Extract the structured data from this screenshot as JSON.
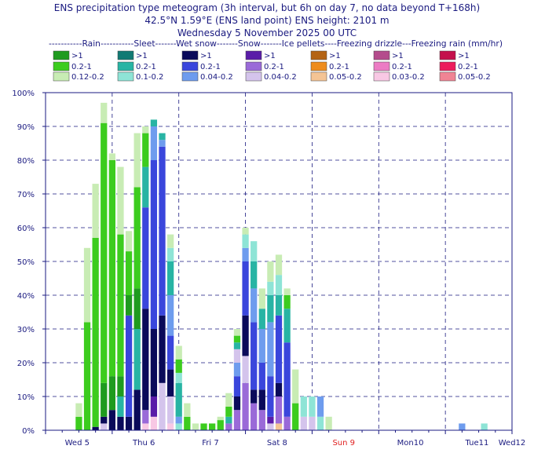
{
  "title_lines": [
    "ENS precipitation type meteogram (3h interval, but 6h on day 7, no data beyond T+168h)",
    "42.5°N 1.59°E (ENS land point) ENS height: 2101 m",
    "Wednesday  5 November 2025 00 UTC"
  ],
  "legend": {
    "header": "-----------Rain-----------Sleet-------Wet snow-------Snow-------Ice pellets----Freezing drizzle---Freezing rain (mm/hr)",
    "groups": [
      {
        "name": "Rain",
        "labels": [
          ">1",
          "0.2-1",
          "0.12-0.2"
        ],
        "colors": [
          "#1f9b1f",
          "#3ccc1e",
          "#c8ecb4"
        ]
      },
      {
        "name": "Sleet",
        "labels": [
          ">1",
          "0.2-1",
          "0.1-0.2"
        ],
        "colors": [
          "#127a74",
          "#28b4a4",
          "#8ee4d6"
        ]
      },
      {
        "name": "Wet snow",
        "labels": [
          ">1",
          "0.2-1",
          "0.04-0.2"
        ],
        "colors": [
          "#0a0a5a",
          "#3a46dc",
          "#6e9cee"
        ]
      },
      {
        "name": "Snow",
        "labels": [
          ">1",
          "0.2-1",
          "0.04-0.2"
        ],
        "colors": [
          "#5a1ca8",
          "#9a6ad8",
          "#d4c4ec"
        ]
      },
      {
        "name": "Ice pellets",
        "labels": [
          ">1",
          "0.2-1",
          "0.05-0.2"
        ],
        "colors": [
          "#b46414",
          "#ee8c1c",
          "#f4c494"
        ]
      },
      {
        "name": "Freezing drizzle",
        "labels": [
          ">1",
          "0.2-1",
          "0.03-0.2"
        ],
        "colors": [
          "#b44c8c",
          "#ec7cc4",
          "#f8c8e4"
        ]
      },
      {
        "name": "Freezing rain",
        "labels": [
          ">1",
          "0.2-1",
          "0.05-0.2"
        ],
        "colors": [
          "#c4104c",
          "#ec1c5c",
          "#f08494"
        ]
      }
    ]
  },
  "chart_data": {
    "type": "bar",
    "stacked": true,
    "ylim": [
      0,
      100
    ],
    "yticks": [
      "0%",
      "10%",
      "20%",
      "30%",
      "40%",
      "50%",
      "60%",
      "70%",
      "80%",
      "90%",
      "100%"
    ],
    "xlim_hours": [
      0,
      168
    ],
    "xticks": [
      {
        "label": "Wed 5",
        "hour": 0,
        "color": "#1a1a80"
      },
      {
        "label": "Thu 6",
        "hour": 24,
        "color": "#1a1a80"
      },
      {
        "label": "Fri 7",
        "hour": 48,
        "color": "#1a1a80"
      },
      {
        "label": "Sat 8",
        "hour": 72,
        "color": "#1a1a80"
      },
      {
        "label": "Sun 9",
        "hour": 96,
        "color": "#e02020"
      },
      {
        "label": "Mon10",
        "hour": 120,
        "color": "#1a1a80"
      },
      {
        "label": "Tue11",
        "hour": 144,
        "color": "#1a1a80"
      },
      {
        "label": "Wed12",
        "hour": 168,
        "color": "#1a1a80"
      }
    ],
    "grid": true,
    "bars": [
      {
        "hour": 12,
        "segments": [
          [
            "rain",
            2,
            4
          ],
          [
            "rain",
            3,
            4
          ]
        ]
      },
      {
        "hour": 15,
        "segments": [
          [
            "rain",
            2,
            32
          ],
          [
            "rain",
            3,
            22
          ]
        ]
      },
      {
        "hour": 18,
        "segments": [
          [
            "wet",
            1,
            1
          ],
          [
            "rain",
            2,
            56
          ],
          [
            "rain",
            3,
            16
          ]
        ]
      },
      {
        "hour": 21,
        "segments": [
          [
            "snow",
            3,
            2
          ],
          [
            "wet",
            1,
            2
          ],
          [
            "rain",
            1,
            10
          ],
          [
            "rain",
            2,
            77
          ],
          [
            "rain",
            3,
            6
          ]
        ]
      },
      {
        "hour": 24,
        "segments": [
          [
            "wet",
            1,
            6
          ],
          [
            "rain",
            1,
            10
          ],
          [
            "rain",
            2,
            64
          ],
          [
            "rain",
            3,
            2
          ]
        ]
      },
      {
        "hour": 27,
        "segments": [
          [
            "wet",
            1,
            4
          ],
          [
            "sleet",
            2,
            6
          ],
          [
            "rain",
            1,
            6
          ],
          [
            "rain",
            2,
            42
          ],
          [
            "rain",
            3,
            20
          ]
        ]
      },
      {
        "hour": 30,
        "segments": [
          [
            "wet",
            1,
            4
          ],
          [
            "wet",
            2,
            30
          ],
          [
            "rain",
            1,
            6
          ],
          [
            "rain",
            2,
            13
          ],
          [
            "rain",
            3,
            6
          ]
        ]
      },
      {
        "hour": 33,
        "segments": [
          [
            "wet",
            1,
            12
          ],
          [
            "sleet",
            2,
            18
          ],
          [
            "rain",
            1,
            12
          ],
          [
            "rain",
            2,
            30
          ],
          [
            "rain",
            3,
            16
          ]
        ]
      },
      {
        "hour": 36,
        "segments": [
          [
            "fdrz",
            3,
            2
          ],
          [
            "snow",
            2,
            4
          ],
          [
            "wet",
            1,
            30
          ],
          [
            "wet",
            2,
            30
          ],
          [
            "sleet",
            2,
            12
          ],
          [
            "rain",
            2,
            10
          ],
          [
            "rain",
            3,
            2
          ]
        ]
      },
      {
        "hour": 39,
        "segments": [
          [
            "fdrz",
            3,
            4
          ],
          [
            "snow",
            1,
            6
          ],
          [
            "wet",
            1,
            20
          ],
          [
            "wet",
            2,
            50
          ],
          [
            "wet",
            3,
            10
          ],
          [
            "sleet",
            2,
            2
          ]
        ]
      },
      {
        "hour": 42,
        "segments": [
          [
            "snow",
            3,
            14
          ],
          [
            "wet",
            1,
            20
          ],
          [
            "wet",
            2,
            50
          ],
          [
            "wet",
            3,
            2
          ],
          [
            "sleet",
            2,
            2
          ]
        ]
      },
      {
        "hour": 45,
        "segments": [
          [
            "fdrz",
            3,
            2
          ],
          [
            "snow",
            3,
            8
          ],
          [
            "wet",
            1,
            8
          ],
          [
            "wet",
            2,
            10
          ],
          [
            "wet",
            3,
            12
          ],
          [
            "sleet",
            2,
            10
          ],
          [
            "sleet",
            3,
            4
          ],
          [
            "rain",
            3,
            4
          ]
        ]
      },
      {
        "hour": 48,
        "segments": [
          [
            "sleet",
            3,
            2
          ],
          [
            "wet",
            3,
            2
          ],
          [
            "sleet",
            2,
            10
          ],
          [
            "sleet",
            3,
            3
          ],
          [
            "rain",
            2,
            4
          ],
          [
            "rain",
            3,
            4
          ]
        ]
      },
      {
        "hour": 51,
        "segments": [
          [
            "rain",
            2,
            4
          ],
          [
            "rain",
            3,
            4
          ]
        ]
      },
      {
        "hour": 54,
        "segments": [
          [
            "rain",
            3,
            2
          ]
        ]
      },
      {
        "hour": 57,
        "segments": [
          [
            "rain",
            2,
            2
          ]
        ]
      },
      {
        "hour": 60,
        "segments": [
          [
            "rain",
            2,
            2
          ]
        ]
      },
      {
        "hour": 63,
        "segments": [
          [
            "rain",
            2,
            3
          ],
          [
            "rain",
            3,
            1
          ]
        ]
      },
      {
        "hour": 66,
        "segments": [
          [
            "snow",
            2,
            2
          ],
          [
            "sleet",
            2,
            2
          ],
          [
            "rain",
            2,
            3
          ],
          [
            "rain",
            3,
            4
          ]
        ]
      },
      {
        "hour": 69,
        "segments": [
          [
            "snow",
            2,
            6
          ],
          [
            "wet",
            1,
            4
          ],
          [
            "wet",
            2,
            6
          ],
          [
            "wet",
            3,
            4
          ],
          [
            "snow",
            3,
            4
          ],
          [
            "sleet",
            2,
            2
          ],
          [
            "rain",
            2,
            2
          ],
          [
            "rain",
            3,
            2
          ]
        ]
      },
      {
        "hour": 72,
        "segments": [
          [
            "snow",
            2,
            14
          ],
          [
            "snow",
            3,
            8
          ],
          [
            "wet",
            1,
            12
          ],
          [
            "wet",
            2,
            16
          ],
          [
            "wet",
            3,
            4
          ],
          [
            "sleet",
            3,
            4
          ],
          [
            "rain",
            3,
            2
          ]
        ]
      },
      {
        "hour": 75,
        "segments": [
          [
            "snow",
            2,
            8
          ],
          [
            "wet",
            1,
            4
          ],
          [
            "wet",
            2,
            20
          ],
          [
            "wet",
            3,
            10
          ],
          [
            "sleet",
            2,
            8
          ],
          [
            "sleet",
            3,
            6
          ]
        ]
      },
      {
        "hour": 78,
        "segments": [
          [
            "snow",
            2,
            6
          ],
          [
            "wet",
            1,
            6
          ],
          [
            "wet",
            2,
            8
          ],
          [
            "wet",
            3,
            10
          ],
          [
            "sleet",
            2,
            6
          ],
          [
            "rain",
            3,
            6
          ]
        ]
      },
      {
        "hour": 81,
        "segments": [
          [
            "snow",
            3,
            2
          ],
          [
            "snow",
            1,
            2
          ],
          [
            "wet",
            2,
            12
          ],
          [
            "wet",
            3,
            16
          ],
          [
            "sleet",
            2,
            8
          ],
          [
            "sleet",
            3,
            4
          ],
          [
            "rain",
            3,
            6
          ]
        ]
      },
      {
        "hour": 84,
        "segments": [
          [
            "pellet",
            3,
            2
          ],
          [
            "snow",
            2,
            8
          ],
          [
            "wet",
            1,
            4
          ],
          [
            "wet",
            2,
            20
          ],
          [
            "sleet",
            2,
            6
          ],
          [
            "sleet",
            3,
            6
          ],
          [
            "rain",
            3,
            6
          ]
        ]
      },
      {
        "hour": 87,
        "segments": [
          [
            "snow",
            2,
            4
          ],
          [
            "wet",
            2,
            22
          ],
          [
            "sleet",
            2,
            10
          ],
          [
            "rain",
            2,
            4
          ],
          [
            "rain",
            3,
            2
          ]
        ]
      },
      {
        "hour": 90,
        "segments": [
          [
            "rain",
            2,
            8
          ],
          [
            "rain",
            3,
            10
          ]
        ]
      },
      {
        "hour": 93,
        "segments": [
          [
            "snow",
            3,
            4
          ],
          [
            "sleet",
            3,
            6
          ]
        ]
      },
      {
        "hour": 96,
        "segments": [
          [
            "snow",
            3,
            4
          ],
          [
            "sleet",
            3,
            6
          ]
        ]
      },
      {
        "hour": 99,
        "segments": [
          [
            "sleet",
            3,
            4
          ],
          [
            "wet",
            3,
            6
          ]
        ]
      },
      {
        "hour": 102,
        "segments": [
          [
            "rain",
            3,
            4
          ]
        ]
      },
      {
        "hour": 150,
        "segments": [
          [
            "wet",
            3,
            2
          ]
        ]
      },
      {
        "hour": 158,
        "segments": [
          [
            "sleet",
            3,
            2
          ]
        ]
      }
    ]
  }
}
